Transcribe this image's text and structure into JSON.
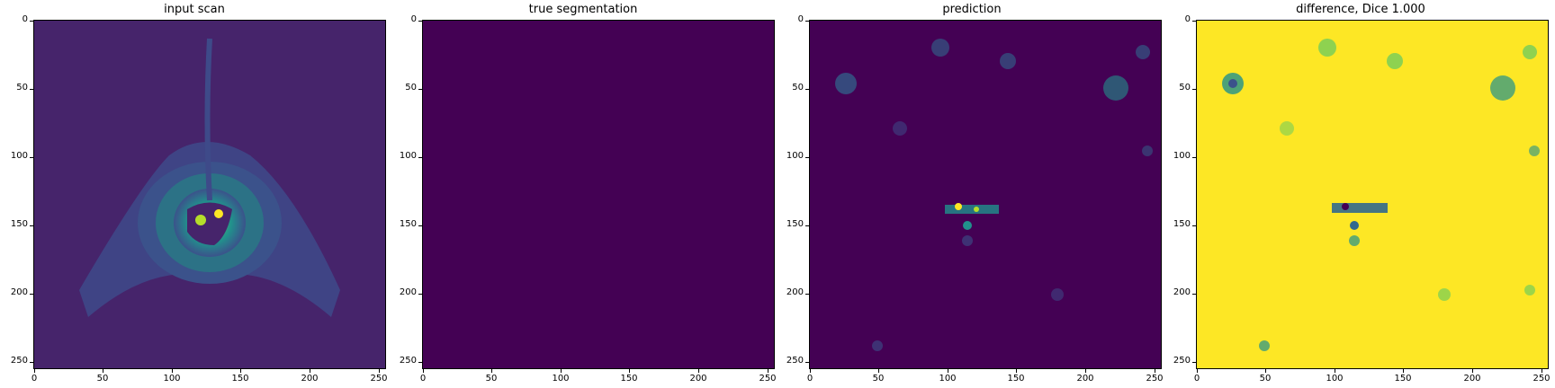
{
  "panels": [
    {
      "title": "input scan"
    },
    {
      "title": "true segmentation"
    },
    {
      "title": "prediction"
    },
    {
      "title": "difference, Dice 1.000"
    }
  ],
  "axes": {
    "x_ticks": [
      "0",
      "50",
      "100",
      "150",
      "200",
      "250"
    ],
    "y_ticks": [
      "0",
      "50",
      "100",
      "150",
      "200",
      "250"
    ],
    "range": [
      0,
      256
    ]
  },
  "colors": {
    "viridis_dark": "#440154",
    "viridis_mid": "#31688e",
    "viridis_teal": "#21918c",
    "viridis_green": "#5ec962",
    "viridis_yellow": "#fde725"
  }
}
